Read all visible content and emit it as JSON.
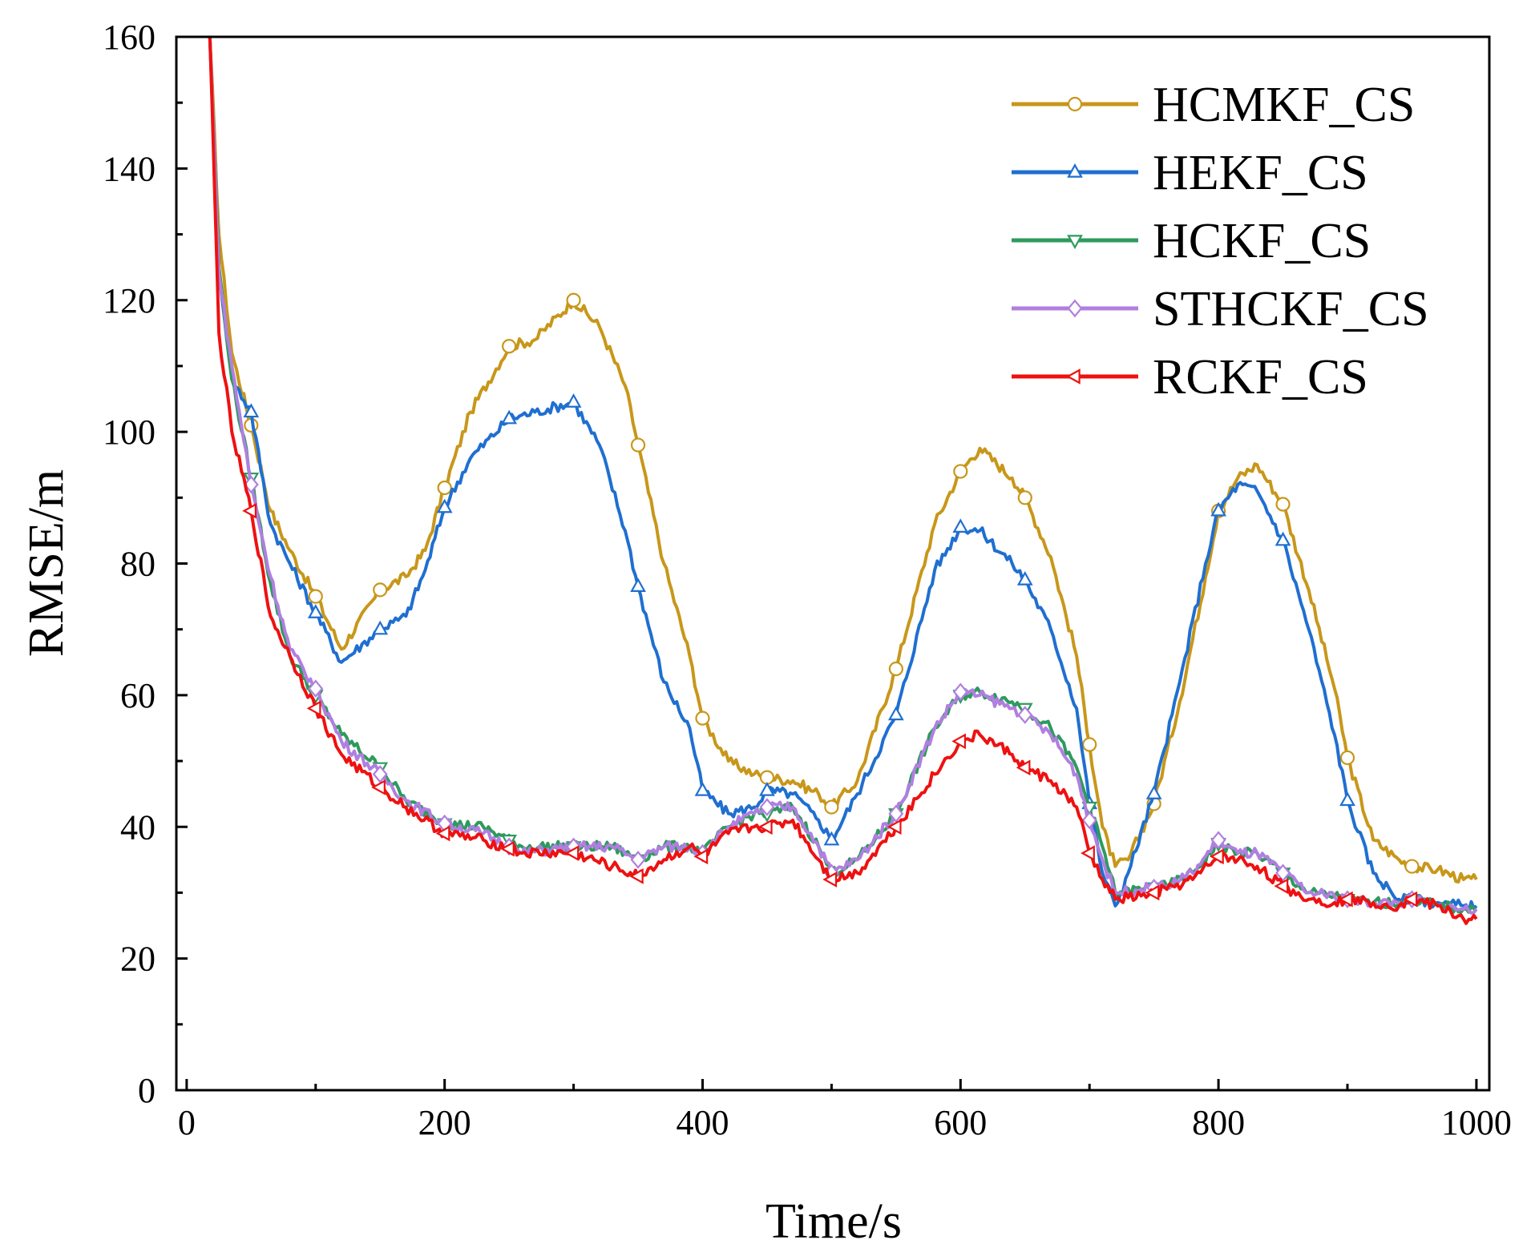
{
  "chart_data": {
    "type": "line",
    "title": "",
    "xlabel": "Time/s",
    "ylabel": "RMSE/m",
    "xlim": [
      -8,
      1010
    ],
    "ylim": [
      0,
      160
    ],
    "xticks": [
      0,
      200,
      400,
      600,
      800,
      1000
    ],
    "yticks": [
      0,
      20,
      40,
      60,
      80,
      100,
      120,
      140,
      160
    ],
    "xtick_labels": [
      "0",
      "200",
      "400",
      "600",
      "800",
      "1000"
    ],
    "ytick_labels": [
      "0",
      "20",
      "40",
      "60",
      "80",
      "100",
      "120",
      "140",
      "160"
    ],
    "grid": false,
    "legend_position": "top-right",
    "series": [
      {
        "name": "HCMKF_CS",
        "color": "#c8971a",
        "marker": "circle",
        "x": [
          18,
          25,
          35,
          50,
          65,
          80,
          100,
          120,
          150,
          170,
          185,
          200,
          220,
          250,
          270,
          300,
          320,
          340,
          350,
          370,
          390,
          400,
          420,
          440,
          450,
          470,
          490,
          500,
          520,
          550,
          580,
          600,
          615,
          640,
          650,
          670,
          690,
          700,
          710,
          720,
          730,
          750,
          770,
          790,
          800,
          815,
          830,
          850,
          870,
          890,
          900,
          920,
          940,
          950,
          970,
          990,
          1000
        ],
        "y": [
          160,
          130,
          112,
          101,
          88,
          82,
          75,
          67,
          76,
          78,
          82,
          91.5,
          103,
          113,
          114,
          120,
          116,
          107,
          98,
          80,
          66,
          56.5,
          50,
          48,
          47.5,
          47,
          45,
          43,
          47,
          64,
          86,
          94,
          97.5,
          93,
          90,
          81,
          66,
          52.5,
          40,
          34,
          35,
          43.5,
          59,
          78,
          88,
          93,
          95,
          89,
          76,
          61,
          50.5,
          38,
          35,
          34,
          33.5,
          32,
          32
        ]
      },
      {
        "name": "HEKF_CS",
        "color": "#1f6fd0",
        "marker": "triangle-up",
        "x": [
          18,
          25,
          35,
          50,
          65,
          80,
          100,
          120,
          150,
          170,
          185,
          200,
          220,
          250,
          270,
          300,
          320,
          340,
          350,
          370,
          390,
          400,
          420,
          440,
          450,
          470,
          490,
          500,
          520,
          550,
          580,
          600,
          615,
          640,
          650,
          670,
          690,
          700,
          710,
          720,
          730,
          750,
          770,
          790,
          800,
          815,
          830,
          850,
          870,
          890,
          900,
          920,
          940,
          950,
          970,
          990,
          1000
        ],
        "y": [
          160,
          125,
          108,
          103,
          86,
          80,
          72.5,
          65,
          70,
          72,
          79,
          88.5,
          96,
          102,
          103,
          104.5,
          98,
          85,
          76.5,
          62,
          55,
          45.5,
          42,
          43,
          45.5,
          45,
          41,
          38,
          45,
          57,
          79,
          85.5,
          85,
          80,
          77.5,
          70,
          58,
          43.5,
          33,
          28,
          33,
          45,
          62,
          80,
          88,
          92,
          91,
          83.5,
          70,
          54,
          44,
          33,
          29,
          29,
          28.5,
          28,
          28
        ]
      },
      {
        "name": "HCKF_CS",
        "color": "#2e9a5e",
        "marker": "triangle-down",
        "x": [
          18,
          25,
          35,
          50,
          65,
          80,
          100,
          120,
          150,
          170,
          200,
          230,
          260,
          300,
          330,
          350,
          370,
          390,
          400,
          420,
          440,
          450,
          470,
          490,
          500,
          520,
          550,
          580,
          600,
          615,
          640,
          650,
          670,
          690,
          700,
          710,
          720,
          740,
          760,
          780,
          800,
          815,
          830,
          850,
          870,
          890,
          900,
          920,
          940,
          950,
          970,
          990,
          1000
        ],
        "y": [
          160,
          125,
          108,
          93,
          77,
          66,
          60,
          54,
          49,
          44,
          40.5,
          40,
          37,
          37,
          37,
          35,
          37,
          37,
          36,
          40,
          42,
          42,
          43,
          37,
          33,
          35,
          42,
          55,
          60,
          60.5,
          59,
          58,
          55,
          49,
          43,
          37,
          30,
          30.5,
          31,
          33,
          37.5,
          36,
          36,
          33,
          30,
          29.5,
          29,
          28.5,
          28.5,
          29,
          28,
          27.5,
          27.5
        ]
      },
      {
        "name": "STHCKF_CS",
        "color": "#b07fe0",
        "marker": "diamond",
        "x": [
          18,
          25,
          35,
          50,
          65,
          80,
          100,
          120,
          150,
          170,
          200,
          230,
          260,
          300,
          330,
          350,
          370,
          390,
          400,
          420,
          440,
          450,
          470,
          490,
          500,
          520,
          550,
          580,
          600,
          615,
          640,
          650,
          670,
          690,
          700,
          710,
          720,
          740,
          760,
          780,
          800,
          815,
          830,
          850,
          870,
          890,
          900,
          920,
          940,
          950,
          970,
          990,
          1000
        ],
        "y": [
          160,
          124,
          110,
          92,
          78,
          67,
          61,
          53,
          48,
          44,
          40.5,
          39,
          36,
          37,
          37,
          35,
          37,
          37,
          36,
          40,
          42,
          43,
          43,
          37,
          33,
          35,
          42,
          55,
          60.5,
          60,
          58,
          57,
          54,
          48,
          41,
          35,
          30,
          30.5,
          31,
          33,
          38,
          36,
          36,
          33,
          30,
          29.5,
          29,
          28.5,
          28.5,
          29,
          28,
          27.5,
          27.5
        ]
      },
      {
        "name": "RCKF_CS",
        "color": "#ee1111",
        "marker": "triangle-left",
        "x": [
          18,
          25,
          35,
          50,
          65,
          80,
          100,
          120,
          150,
          170,
          200,
          230,
          260,
          300,
          330,
          350,
          370,
          390,
          400,
          420,
          440,
          450,
          470,
          490,
          500,
          520,
          550,
          580,
          600,
          615,
          640,
          650,
          670,
          690,
          700,
          710,
          720,
          740,
          760,
          780,
          800,
          815,
          830,
          850,
          870,
          890,
          900,
          920,
          940,
          950,
          970,
          990,
          1000
        ],
        "y": [
          160,
          115,
          100,
          88,
          72,
          66,
          58,
          51,
          46,
          43,
          39,
          38,
          36,
          36,
          34,
          32.5,
          35,
          37,
          35.5,
          39,
          40,
          40,
          41,
          35,
          32,
          33,
          40,
          48,
          53,
          54,
          51,
          49,
          47,
          43,
          36,
          32,
          29,
          29.5,
          30.5,
          32,
          35.5,
          35,
          34,
          31,
          29,
          28.5,
          29,
          28.5,
          28,
          29,
          28,
          26,
          26
        ]
      }
    ]
  }
}
